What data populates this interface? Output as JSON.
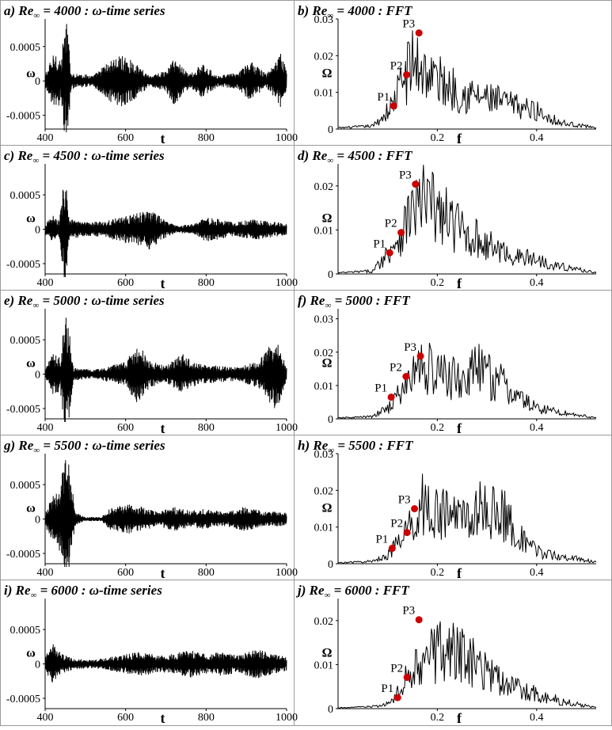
{
  "chart_data": [
    {
      "type": "line",
      "panel": "a",
      "title_prefix": "a) Re",
      "title_sub": "∞",
      "title_suffix": " = 4000 : ω-time series",
      "xlabel": "t",
      "ylabel": "ω",
      "xlim": [
        400,
        1000
      ],
      "ylim": [
        -0.0007,
        0.0009
      ],
      "x_ticks": [
        400,
        600,
        800,
        1000
      ],
      "x_tick_labels": [
        "400",
        "600",
        "800",
        "1000"
      ],
      "y_ticks": [
        0.0005,
        0,
        -0.0005
      ],
      "y_tick_labels": [
        "0.0005",
        "0",
        "-0.0005"
      ],
      "envelope": [
        {
          "t": 400,
          "a": 0.0001
        },
        {
          "t": 425,
          "a": 0.00045
        },
        {
          "t": 440,
          "a": 0.0003
        },
        {
          "t": 449,
          "a": 0.00085
        },
        {
          "t": 455,
          "a": 0.00085
        },
        {
          "t": 465,
          "a": 0.00012
        },
        {
          "t": 520,
          "a": 8e-05
        },
        {
          "t": 560,
          "a": 0.0003
        },
        {
          "t": 590,
          "a": 0.00038
        },
        {
          "t": 620,
          "a": 0.00028
        },
        {
          "t": 660,
          "a": 8e-05
        },
        {
          "t": 700,
          "a": 0.00015
        },
        {
          "t": 720,
          "a": 0.00035
        },
        {
          "t": 760,
          "a": 0.0001
        },
        {
          "t": 790,
          "a": 0.00025
        },
        {
          "t": 830,
          "a": 8e-05
        },
        {
          "t": 880,
          "a": 0.00012
        },
        {
          "t": 910,
          "a": 0.0003
        },
        {
          "t": 950,
          "a": 0.0001
        },
        {
          "t": 985,
          "a": 0.0004
        },
        {
          "t": 1000,
          "a": 0.0002
        }
      ]
    },
    {
      "type": "line",
      "panel": "b",
      "title_prefix": "b) Re",
      "title_sub": "∞",
      "title_suffix": " = 4000 : FFT",
      "xlabel": "f",
      "ylabel": "Ω",
      "xlim": [
        0,
        0.52
      ],
      "ylim": [
        0,
        0.03
      ],
      "x_ticks": [
        0.2,
        0.4
      ],
      "x_tick_labels": [
        "0.2",
        "0.4"
      ],
      "y_ticks": [
        0,
        0.01,
        0.02,
        0.03
      ],
      "y_tick_labels": [
        "0",
        "0.01",
        "0.02",
        "0.03"
      ],
      "envelope": [
        {
          "f": 0,
          "a": 0.0004
        },
        {
          "f": 0.07,
          "a": 0.001
        },
        {
          "f": 0.09,
          "a": 0.004
        },
        {
          "f": 0.11,
          "a": 0.008
        },
        {
          "f": 0.13,
          "a": 0.016
        },
        {
          "f": 0.15,
          "a": 0.022
        },
        {
          "f": 0.17,
          "a": 0.02
        },
        {
          "f": 0.2,
          "a": 0.016
        },
        {
          "f": 0.25,
          "a": 0.012
        },
        {
          "f": 0.3,
          "a": 0.01
        },
        {
          "f": 0.35,
          "a": 0.008
        },
        {
          "f": 0.4,
          "a": 0.006
        },
        {
          "f": 0.45,
          "a": 0.002
        },
        {
          "f": 0.52,
          "a": 0.0005
        }
      ],
      "peaks": [
        {
          "label": "P1",
          "f": 0.112,
          "value": 0.0063
        },
        {
          "label": "P2",
          "f": 0.138,
          "value": 0.0148
        },
        {
          "label": "P3",
          "f": 0.163,
          "value": 0.0262
        }
      ]
    },
    {
      "type": "line",
      "panel": "c",
      "title_prefix": "c) Re",
      "title_sub": "∞",
      "title_suffix": " = 4500 : ω-time series",
      "xlabel": "t",
      "ylabel": "ω",
      "xlim": [
        400,
        1000
      ],
      "ylim": [
        -0.00065,
        0.00095
      ],
      "x_ticks": [
        400,
        600,
        800,
        1000
      ],
      "x_tick_labels": [
        "400",
        "600",
        "800",
        "1000"
      ],
      "y_ticks": [
        0.0005,
        0,
        -0.0005
      ],
      "y_tick_labels": [
        "0.0005",
        "0",
        "-0.0005"
      ],
      "envelope": [
        {
          "t": 400,
          "a": 8e-05
        },
        {
          "t": 420,
          "a": 0.0002
        },
        {
          "t": 435,
          "a": 0.00012
        },
        {
          "t": 450,
          "a": 0.0009
        },
        {
          "t": 460,
          "a": 0.00015
        },
        {
          "t": 500,
          "a": 0.0001
        },
        {
          "t": 550,
          "a": 0.00012
        },
        {
          "t": 600,
          "a": 0.0002
        },
        {
          "t": 640,
          "a": 0.00025
        },
        {
          "t": 660,
          "a": 0.0003
        },
        {
          "t": 700,
          "a": 0.00012
        },
        {
          "t": 730,
          "a": 5e-05
        },
        {
          "t": 770,
          "a": 8e-05
        },
        {
          "t": 800,
          "a": 0.00018
        },
        {
          "t": 830,
          "a": 0.00015
        },
        {
          "t": 870,
          "a": 0.0001
        },
        {
          "t": 920,
          "a": 0.00016
        },
        {
          "t": 960,
          "a": 0.00012
        },
        {
          "t": 1000,
          "a": 8e-05
        }
      ]
    },
    {
      "type": "line",
      "panel": "d",
      "title_prefix": "d) Re",
      "title_sub": "∞",
      "title_suffix": " = 4500 : FFT",
      "xlabel": "f",
      "ylabel": "Ω",
      "xlim": [
        0,
        0.52
      ],
      "ylim": [
        0,
        0.025
      ],
      "x_ticks": [
        0.2,
        0.4
      ],
      "x_tick_labels": [
        "0.2",
        "0.4"
      ],
      "y_ticks": [
        0,
        0.01,
        0.02
      ],
      "y_tick_labels": [
        "0",
        "0.01",
        "0.02"
      ],
      "envelope": [
        {
          "f": 0,
          "a": 0.0003
        },
        {
          "f": 0.07,
          "a": 0.0008
        },
        {
          "f": 0.09,
          "a": 0.004
        },
        {
          "f": 0.11,
          "a": 0.008
        },
        {
          "f": 0.13,
          "a": 0.012
        },
        {
          "f": 0.15,
          "a": 0.018
        },
        {
          "f": 0.18,
          "a": 0.02
        },
        {
          "f": 0.2,
          "a": 0.017
        },
        {
          "f": 0.25,
          "a": 0.012
        },
        {
          "f": 0.3,
          "a": 0.008
        },
        {
          "f": 0.35,
          "a": 0.005
        },
        {
          "f": 0.4,
          "a": 0.004
        },
        {
          "f": 0.45,
          "a": 0.002
        },
        {
          "f": 0.52,
          "a": 0.0004
        }
      ],
      "peaks": [
        {
          "label": "P1",
          "f": 0.104,
          "value": 0.0048
        },
        {
          "label": "P2",
          "f": 0.127,
          "value": 0.0094
        },
        {
          "label": "P3",
          "f": 0.156,
          "value": 0.0204
        }
      ]
    },
    {
      "type": "line",
      "panel": "e",
      "title_prefix": "e) Re",
      "title_sub": "∞",
      "title_suffix": " = 5000 : ω-time series",
      "xlabel": "t",
      "ylabel": "ω",
      "xlim": [
        400,
        1000
      ],
      "ylim": [
        -0.00065,
        0.00095
      ],
      "x_ticks": [
        400,
        600,
        800,
        1000
      ],
      "x_tick_labels": [
        "400",
        "600",
        "800",
        "1000"
      ],
      "y_ticks": [
        0.0005,
        0,
        -0.0005
      ],
      "y_tick_labels": [
        "0.0005",
        "0",
        "-0.0005"
      ],
      "envelope": [
        {
          "t": 400,
          "a": 0.0001
        },
        {
          "t": 420,
          "a": 0.0003
        },
        {
          "t": 438,
          "a": 0.00025
        },
        {
          "t": 450,
          "a": 0.0009
        },
        {
          "t": 458,
          "a": 0.0008
        },
        {
          "t": 470,
          "a": 0.0001
        },
        {
          "t": 520,
          "a": 6e-05
        },
        {
          "t": 560,
          "a": 0.00012
        },
        {
          "t": 600,
          "a": 0.00018
        },
        {
          "t": 630,
          "a": 0.00045
        },
        {
          "t": 660,
          "a": 0.0002
        },
        {
          "t": 700,
          "a": 0.00012
        },
        {
          "t": 740,
          "a": 0.0003
        },
        {
          "t": 780,
          "a": 0.00015
        },
        {
          "t": 830,
          "a": 0.00012
        },
        {
          "t": 880,
          "a": 0.0001
        },
        {
          "t": 930,
          "a": 0.0002
        },
        {
          "t": 975,
          "a": 0.00055
        },
        {
          "t": 1000,
          "a": 0.0001
        }
      ]
    },
    {
      "type": "line",
      "panel": "f",
      "title_prefix": "f) Re",
      "title_sub": "∞",
      "title_suffix": " = 5000 : FFT",
      "xlabel": "f",
      "ylabel": "Ω",
      "xlim": [
        0,
        0.52
      ],
      "ylim": [
        0,
        0.033
      ],
      "x_ticks": [
        0.2,
        0.4
      ],
      "x_tick_labels": [
        "0.2",
        "0.4"
      ],
      "y_ticks": [
        0,
        0.01,
        0.02,
        0.03
      ],
      "y_tick_labels": [
        "0",
        "0.01",
        "0.02",
        "0.03"
      ],
      "envelope": [
        {
          "f": 0,
          "a": 0.0003
        },
        {
          "f": 0.07,
          "a": 0.0008
        },
        {
          "f": 0.1,
          "a": 0.004
        },
        {
          "f": 0.13,
          "a": 0.01
        },
        {
          "f": 0.15,
          "a": 0.016
        },
        {
          "f": 0.17,
          "a": 0.02
        },
        {
          "f": 0.2,
          "a": 0.016
        },
        {
          "f": 0.25,
          "a": 0.014
        },
        {
          "f": 0.28,
          "a": 0.018
        },
        {
          "f": 0.32,
          "a": 0.014
        },
        {
          "f": 0.36,
          "a": 0.008
        },
        {
          "f": 0.4,
          "a": 0.004
        },
        {
          "f": 0.46,
          "a": 0.002
        },
        {
          "f": 0.52,
          "a": 0.0004
        }
      ],
      "peaks": [
        {
          "label": "P1",
          "f": 0.107,
          "value": 0.0065
        },
        {
          "label": "P2",
          "f": 0.137,
          "value": 0.0127
        },
        {
          "label": "P3",
          "f": 0.166,
          "value": 0.0188
        }
      ]
    },
    {
      "type": "line",
      "panel": "g",
      "title_prefix": "g) Re",
      "title_sub": "∞",
      "title_suffix": " = 5500 : ω-time series",
      "xlabel": "t",
      "ylabel": "ω",
      "xlim": [
        400,
        1000
      ],
      "ylim": [
        -0.00065,
        0.00095
      ],
      "x_ticks": [
        400,
        600,
        800,
        1000
      ],
      "x_tick_labels": [
        "400",
        "600",
        "800",
        "1000"
      ],
      "y_ticks": [
        0.0005,
        0,
        -0.0005
      ],
      "y_tick_labels": [
        "0.0005",
        "0",
        "-0.0005"
      ],
      "envelope": [
        {
          "t": 400,
          "a": 0.0001
        },
        {
          "t": 420,
          "a": 0.00035
        },
        {
          "t": 435,
          "a": 0.00045
        },
        {
          "t": 450,
          "a": 0.00088
        },
        {
          "t": 460,
          "a": 0.0008
        },
        {
          "t": 475,
          "a": 0.0001
        },
        {
          "t": 500,
          "a": 3e-05
        },
        {
          "t": 540,
          "a": 3e-05
        },
        {
          "t": 560,
          "a": 0.00015
        },
        {
          "t": 600,
          "a": 0.00022
        },
        {
          "t": 640,
          "a": 0.00018
        },
        {
          "t": 680,
          "a": 0.0001
        },
        {
          "t": 720,
          "a": 0.00018
        },
        {
          "t": 760,
          "a": 0.00012
        },
        {
          "t": 800,
          "a": 0.00015
        },
        {
          "t": 850,
          "a": 0.0001
        },
        {
          "t": 890,
          "a": 0.00018
        },
        {
          "t": 940,
          "a": 0.00012
        },
        {
          "t": 990,
          "a": 0.0001
        }
      ]
    },
    {
      "type": "line",
      "panel": "h",
      "title_prefix": "h) Re",
      "title_sub": "∞",
      "title_suffix": " = 5500 : FFT",
      "xlabel": "f",
      "ylabel": "Ω",
      "xlim": [
        0,
        0.52
      ],
      "ylim": [
        0,
        0.03
      ],
      "x_ticks": [
        0.2,
        0.4
      ],
      "x_tick_labels": [
        "0.2",
        "0.4"
      ],
      "y_ticks": [
        0,
        0.01,
        0.02,
        0.03
      ],
      "y_tick_labels": [
        "0",
        "0.01",
        "0.02",
        "0.03"
      ],
      "envelope": [
        {
          "f": 0,
          "a": 0.0003
        },
        {
          "f": 0.07,
          "a": 0.0008
        },
        {
          "f": 0.1,
          "a": 0.003
        },
        {
          "f": 0.13,
          "a": 0.008
        },
        {
          "f": 0.15,
          "a": 0.014
        },
        {
          "f": 0.17,
          "a": 0.02
        },
        {
          "f": 0.2,
          "a": 0.016
        },
        {
          "f": 0.25,
          "a": 0.016
        },
        {
          "f": 0.3,
          "a": 0.018
        },
        {
          "f": 0.34,
          "a": 0.015
        },
        {
          "f": 0.38,
          "a": 0.006
        },
        {
          "f": 0.42,
          "a": 0.003
        },
        {
          "f": 0.47,
          "a": 0.002
        },
        {
          "f": 0.52,
          "a": 0.0005
        }
      ],
      "peaks": [
        {
          "label": "P1",
          "f": 0.109,
          "value": 0.0042
        },
        {
          "label": "P2",
          "f": 0.139,
          "value": 0.0085
        },
        {
          "label": "P3",
          "f": 0.154,
          "value": 0.015
        }
      ]
    },
    {
      "type": "line",
      "panel": "i",
      "title_prefix": "i) Re",
      "title_sub": "∞",
      "title_suffix": " = 6000 : ω-time series",
      "xlabel": "t",
      "ylabel": "ω",
      "xlim": [
        400,
        1000
      ],
      "ylim": [
        -0.00065,
        0.00095
      ],
      "x_ticks": [
        400,
        600,
        800,
        1000
      ],
      "x_tick_labels": [
        "400",
        "600",
        "800",
        "1000"
      ],
      "y_ticks": [
        0.0005,
        0,
        -0.0005
      ],
      "y_tick_labels": [
        "0.0005",
        "0",
        "-0.0005"
      ],
      "envelope": [
        {
          "t": 400,
          "a": 0.0001
        },
        {
          "t": 420,
          "a": 0.0003
        },
        {
          "t": 440,
          "a": 0.00015
        },
        {
          "t": 470,
          "a": 8e-05
        },
        {
          "t": 520,
          "a": 6e-05
        },
        {
          "t": 560,
          "a": 0.0001
        },
        {
          "t": 600,
          "a": 0.00014
        },
        {
          "t": 640,
          "a": 0.00018
        },
        {
          "t": 680,
          "a": 0.00012
        },
        {
          "t": 720,
          "a": 0.00015
        },
        {
          "t": 760,
          "a": 0.0002
        },
        {
          "t": 800,
          "a": 0.00014
        },
        {
          "t": 840,
          "a": 0.00018
        },
        {
          "t": 880,
          "a": 0.00012
        },
        {
          "t": 920,
          "a": 0.00022
        },
        {
          "t": 960,
          "a": 0.00016
        },
        {
          "t": 1000,
          "a": 0.0001
        }
      ]
    },
    {
      "type": "line",
      "panel": "j",
      "title_prefix": "j) Re",
      "title_sub": "∞",
      "title_suffix": " = 6000 : FFT",
      "xlabel": "f",
      "ylabel": "Ω",
      "xlim": [
        0,
        0.52
      ],
      "ylim": [
        0,
        0.025
      ],
      "x_ticks": [
        0.2,
        0.4
      ],
      "x_tick_labels": [
        "0.2",
        "0.4"
      ],
      "y_ticks": [
        0,
        0.01,
        0.02
      ],
      "y_tick_labels": [
        "0",
        "0.01",
        "0.02"
      ],
      "envelope": [
        {
          "f": 0,
          "a": 0.0002
        },
        {
          "f": 0.08,
          "a": 0.0006
        },
        {
          "f": 0.11,
          "a": 0.002
        },
        {
          "f": 0.13,
          "a": 0.006
        },
        {
          "f": 0.15,
          "a": 0.012
        },
        {
          "f": 0.18,
          "a": 0.015
        },
        {
          "f": 0.22,
          "a": 0.016
        },
        {
          "f": 0.26,
          "a": 0.014
        },
        {
          "f": 0.3,
          "a": 0.01
        },
        {
          "f": 0.35,
          "a": 0.006
        },
        {
          "f": 0.4,
          "a": 0.004
        },
        {
          "f": 0.45,
          "a": 0.002
        },
        {
          "f": 0.52,
          "a": 0.0003
        }
      ],
      "peaks": [
        {
          "label": "P1",
          "f": 0.12,
          "value": 0.0025
        },
        {
          "label": "P2",
          "f": 0.139,
          "value": 0.0071
        },
        {
          "label": "P3",
          "f": 0.163,
          "value": 0.0202
        }
      ]
    }
  ]
}
